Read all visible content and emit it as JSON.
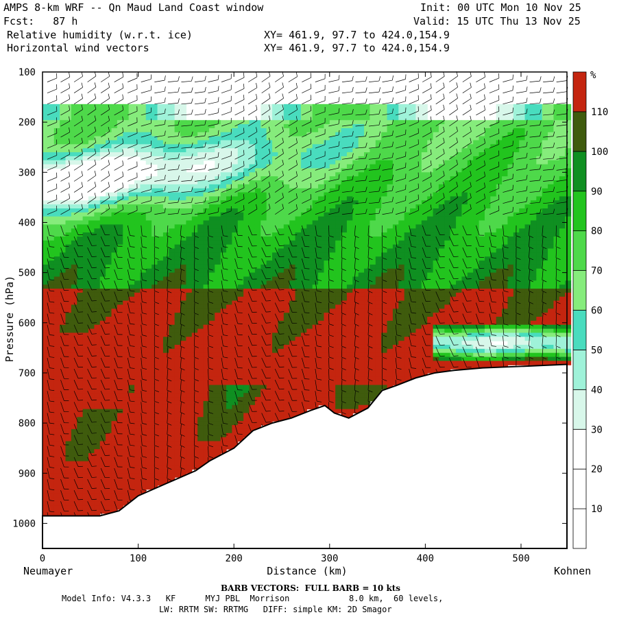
{
  "header": {
    "line1_left": "AMPS 8-km WRF -- Qn Maud Land Coast window",
    "line1_right": "Init: 00 UTC Mon 10 Nov 25",
    "line2_left": "Fcst:   87 h",
    "line2_right": "Valid: 15 UTC Thu 13 Nov 25",
    "line3_left": "Relative humidity (w.r.t. ice)",
    "line3_right": "XY= 461.9, 97.7 to 424.0,154.9",
    "line4_left": "Horizontal wind vectors",
    "line4_right": "XY= 461.9, 97.7 to 424.0,154.9"
  },
  "footer": {
    "barb_note": "BARB VECTORS:  FULL BARB = 10 kts",
    "model_info": "Model Info: V4.3.3   KF      MYJ PBL  Morrison            8.0 km,  60 levels,",
    "physics": "LW: RRTM SW: RRTMG   DIFF: simple KM: 2D Smagor"
  },
  "colors": {
    "white": "#ffffff",
    "pale_cyan": "#d8f7ea",
    "light_cyan": "#9ff2d9",
    "cyan": "#49dcbe",
    "light_green": "#86ec7c",
    "green": "#4ed94a",
    "medium_green": "#22c41e",
    "dark_green": "#0f8f21",
    "olive": "#3f5b0d",
    "red": "#c4250f"
  },
  "chart_data": {
    "type": "heatmap",
    "title": "Relative humidity (w.r.t. ice)",
    "xlabel": "Distance (km)",
    "ylabel": "Pressure (hPa)",
    "x_endpoint_labels": [
      "Neumayer",
      "Kohnen"
    ],
    "xlim": [
      0,
      548
    ],
    "ylim": [
      1050,
      100
    ],
    "x_ticks": [
      0,
      100,
      200,
      300,
      400,
      500
    ],
    "y_ticks": [
      100,
      200,
      300,
      400,
      500,
      600,
      700,
      800,
      900,
      1000
    ],
    "colorbar": {
      "unit": "%",
      "levels": [
        10,
        20,
        30,
        40,
        50,
        60,
        70,
        80,
        90,
        100,
        110
      ],
      "colors": [
        "#ffffff",
        "#ffffff",
        "#ffffff",
        "#d8f7ea",
        "#9ff2d9",
        "#49dcbe",
        "#86ec7c",
        "#4ed94a",
        "#22c41e",
        "#0f8f21",
        "#3f5b0d",
        "#c4250f"
      ]
    },
    "terrain_pressure": {
      "x": [
        0,
        10,
        30,
        60,
        80,
        100,
        130,
        160,
        175,
        200,
        220,
        240,
        260,
        280,
        295,
        305,
        320,
        340,
        355,
        370,
        390,
        410,
        430,
        460,
        500,
        548
      ],
      "p": [
        985,
        985,
        985,
        985,
        975,
        945,
        920,
        895,
        875,
        850,
        815,
        800,
        790,
        775,
        765,
        780,
        790,
        770,
        735,
        725,
        710,
        700,
        695,
        690,
        687,
        683
      ]
    },
    "rh_regions": [
      {
        "label": "white",
        "x": [
          0,
          548
        ],
        "p": [
          100,
          170
        ]
      },
      {
        "label": "light-green",
        "x": [
          0,
          548
        ],
        "p": [
          170,
          200
        ]
      },
      {
        "label": "dry-layer-white",
        "x": [
          0,
          160
        ],
        "p": [
          270,
          400
        ]
      },
      {
        "label": "olive-band",
        "x": [
          0,
          548
        ],
        "p": [
          530,
          700
        ]
      },
      {
        "label": "red-max",
        "x": [
          0,
          90
        ],
        "p": [
          635,
          765
        ]
      },
      {
        "label": "white-pocket",
        "x": [
          415,
          548
        ],
        "p": [
          600,
          675
        ]
      }
    ],
    "wind_barbs_note": "BARB VECTORS:  FULL BARB = 10 kts"
  }
}
